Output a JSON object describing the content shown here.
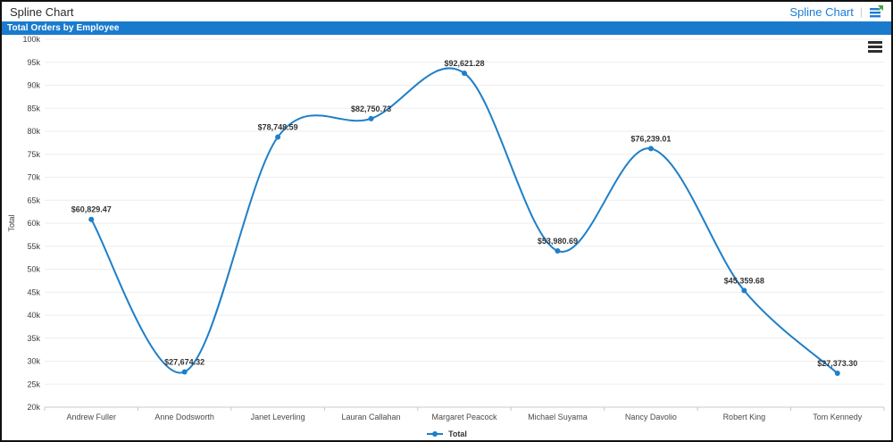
{
  "window": {
    "title": "Spline Chart",
    "header_link": "Spline Chart",
    "divider": "|"
  },
  "panel": {
    "title": "Total Orders by Employee"
  },
  "colors": {
    "panel_header_bg": "#1a7bcd",
    "link": "#1e7bd2",
    "series": "#1e7fc9",
    "grid": "#ededed",
    "axis": "#c8c8c8",
    "tick_text": "#3d3d3d",
    "category_text": "#4a4a4a",
    "data_label": "#333333"
  },
  "chart_data": {
    "type": "line",
    "subtype": "spline",
    "title": "Total Orders by Employee",
    "ylabel": "Total",
    "xlabel": "",
    "ylim": [
      20000,
      100000
    ],
    "ytick_step": 5000,
    "ytick_labels": [
      "20k",
      "25k",
      "30k",
      "35k",
      "40k",
      "45k",
      "50k",
      "55k",
      "60k",
      "65k",
      "70k",
      "75k",
      "80k",
      "85k",
      "90k",
      "95k",
      "100k"
    ],
    "grid": "horizontal",
    "categories": [
      "Andrew Fuller",
      "Anne Dodsworth",
      "Janet Leverling",
      "Lauran Callahan",
      "Margaret Peacock",
      "Michael Suyama",
      "Nancy Davolio",
      "Robert King",
      "Tom Kennedy"
    ],
    "series": [
      {
        "name": "Total",
        "color": "#1e7fc9",
        "values": [
          60829.47,
          27674.32,
          78748.59,
          82750.73,
          92621.28,
          53980.69,
          76239.01,
          45359.68,
          27373.3
        ],
        "point_labels": [
          "$60,829.47",
          "$27,674.32",
          "$78,748.59",
          "$82,750.73",
          "$92,621.28",
          "$53,980.69",
          "$76,239.01",
          "$45,359.68",
          "$27,373.30"
        ]
      }
    ],
    "legend": {
      "position": "bottom",
      "items": [
        "Total"
      ]
    }
  }
}
